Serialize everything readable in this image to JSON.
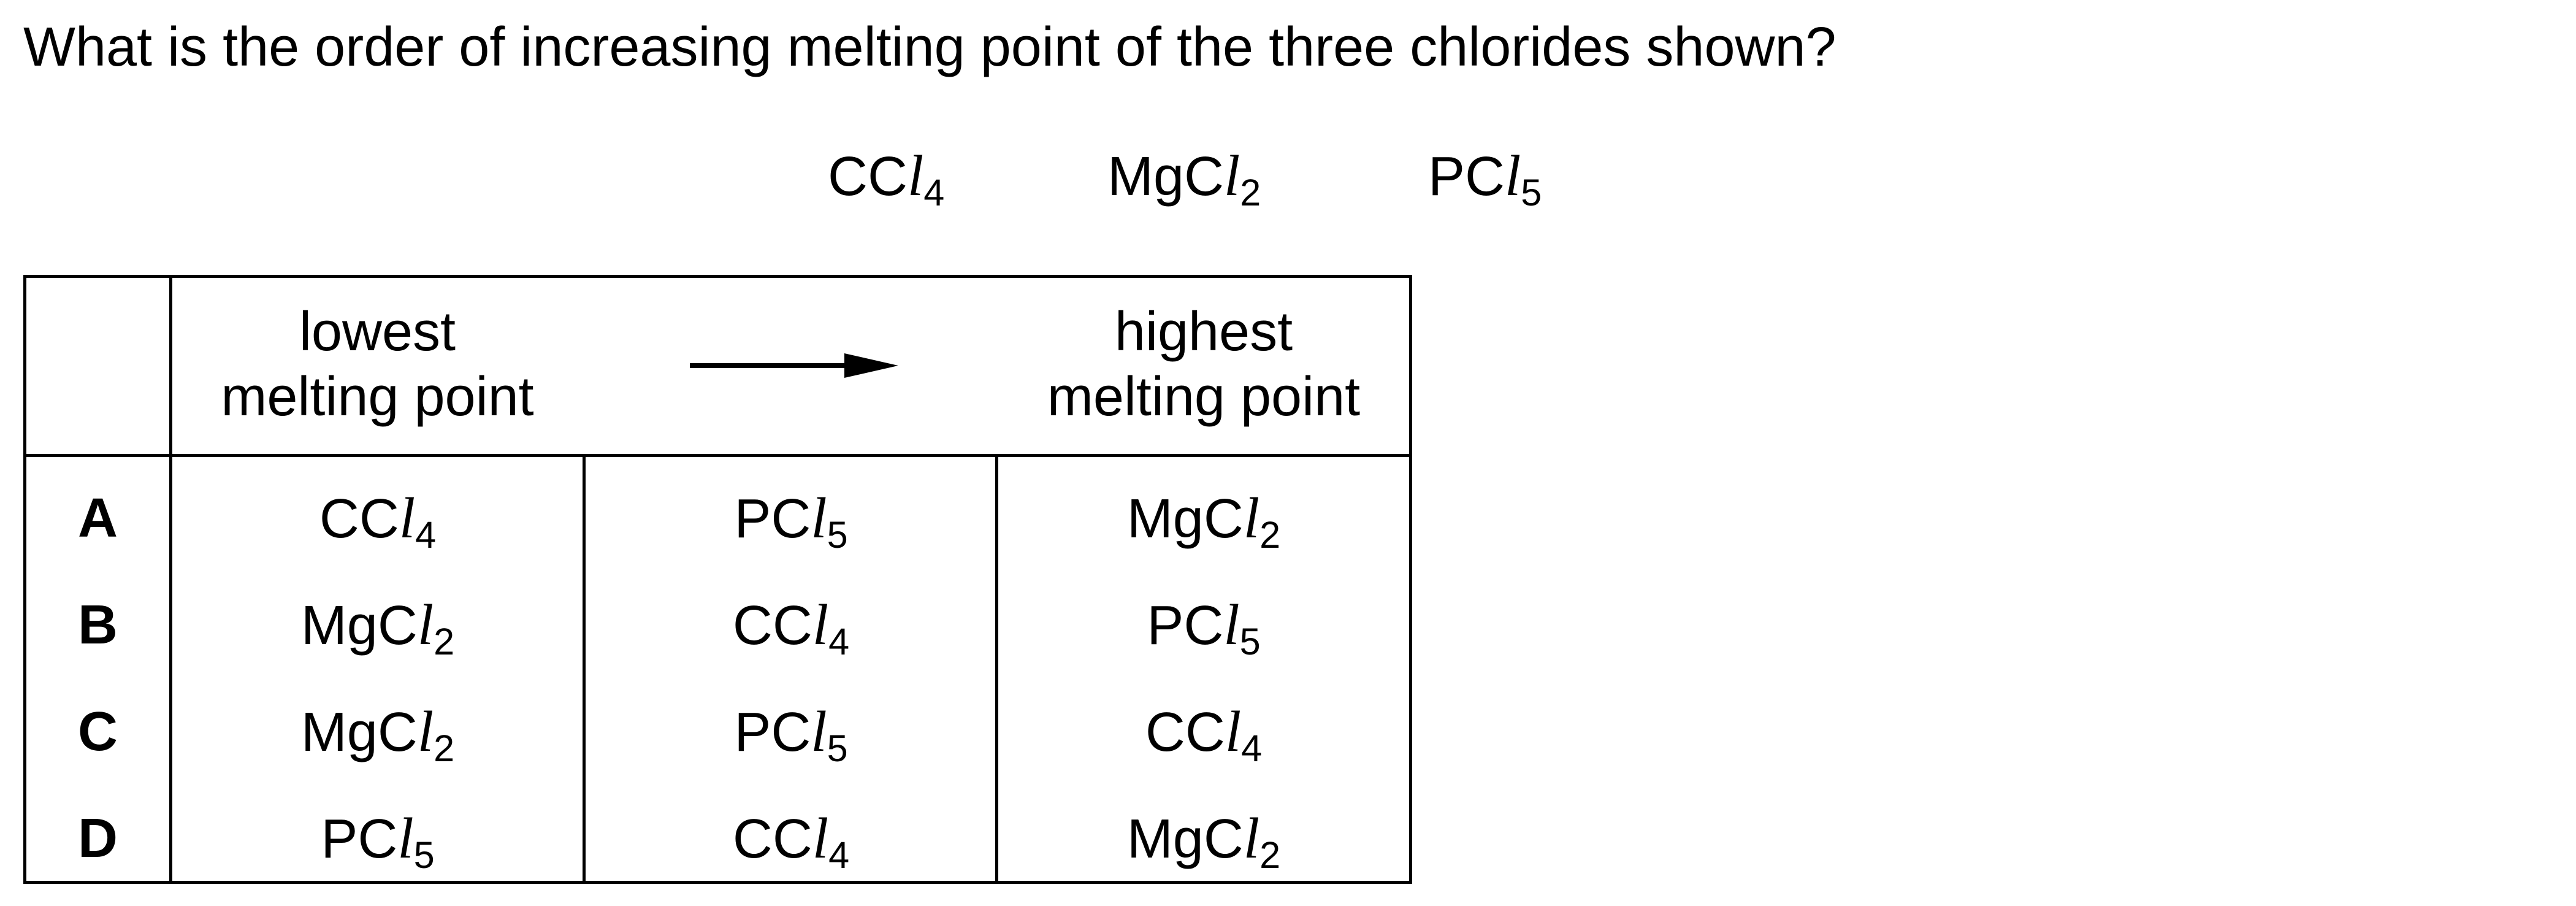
{
  "question": "What is the order of increasing melting point of the three chlorides shown?",
  "chlorides": [
    {
      "base": "CC",
      "sym": "l",
      "sub": "4"
    },
    {
      "base": "MgC",
      "sym": "l",
      "sub": "2"
    },
    {
      "base": "PC",
      "sym": "l",
      "sub": "5"
    }
  ],
  "table": {
    "header": {
      "lowest_line1": "lowest",
      "lowest_line2": "melting point",
      "highest_line1": "highest",
      "highest_line2": "melting point"
    },
    "rows": [
      {
        "letter": "A",
        "cells": [
          {
            "base": "CC",
            "sym": "l",
            "sub": "4"
          },
          {
            "base": "PC",
            "sym": "l",
            "sub": "5"
          },
          {
            "base": "MgC",
            "sym": "l",
            "sub": "2"
          }
        ]
      },
      {
        "letter": "B",
        "cells": [
          {
            "base": "MgC",
            "sym": "l",
            "sub": "2"
          },
          {
            "base": "CC",
            "sym": "l",
            "sub": "4"
          },
          {
            "base": "PC",
            "sym": "l",
            "sub": "5"
          }
        ]
      },
      {
        "letter": "C",
        "cells": [
          {
            "base": "MgC",
            "sym": "l",
            "sub": "2"
          },
          {
            "base": "PC",
            "sym": "l",
            "sub": "5"
          },
          {
            "base": "CC",
            "sym": "l",
            "sub": "4"
          }
        ]
      },
      {
        "letter": "D",
        "cells": [
          {
            "base": "PC",
            "sym": "l",
            "sub": "5"
          },
          {
            "base": "CC",
            "sym": "l",
            "sub": "4"
          },
          {
            "base": "MgC",
            "sym": "l",
            "sub": "2"
          }
        ]
      }
    ]
  }
}
